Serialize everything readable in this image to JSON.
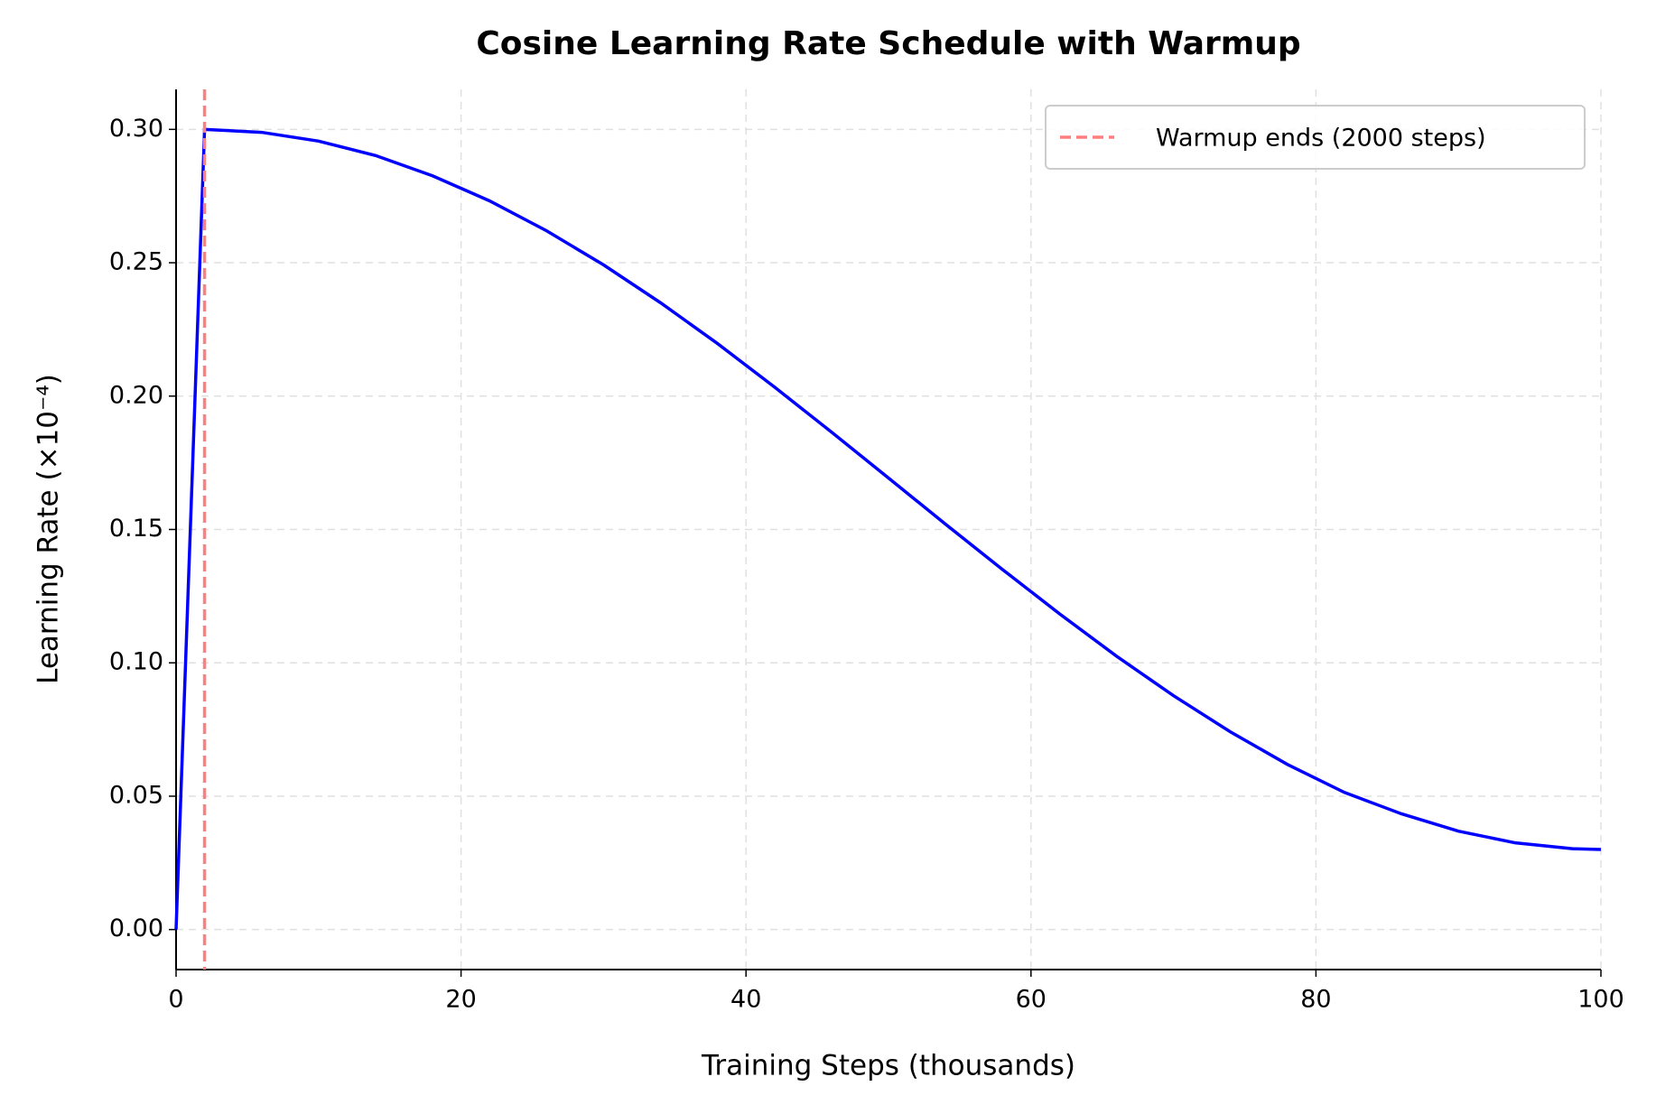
{
  "chart_data": {
    "type": "line",
    "title": "Cosine Learning Rate Schedule with Warmup",
    "x_label": "Training Steps (thousands)",
    "y_label": "Learning Rate (×10⁻⁴)",
    "x": [
      0,
      2,
      6,
      10,
      14,
      18,
      22,
      26,
      30,
      34,
      38,
      42,
      46,
      50,
      54,
      58,
      62,
      66,
      70,
      74,
      78,
      82,
      86,
      90,
      94,
      98,
      100
    ],
    "values": [
      0,
      0.3,
      0.2989,
      0.2956,
      0.2902,
      0.2826,
      0.2732,
      0.262,
      0.2492,
      0.235,
      0.2197,
      0.2034,
      0.1865,
      0.1693,
      0.152,
      0.135,
      0.1184,
      0.1025,
      0.0877,
      0.0741,
      0.0619,
      0.0514,
      0.0434,
      0.0369,
      0.0325,
      0.0303,
      0.03
    ],
    "color": "#0000ff",
    "vline": {
      "x": 2,
      "name": "Warmup ends (2000 steps)",
      "color": "#ff7f7f"
    },
    "xlim": [
      0,
      100
    ],
    "xticks": [
      0,
      20,
      40,
      60,
      80,
      100
    ],
    "ylim": [
      -0.015,
      0.315
    ],
    "yticks": [
      {
        "value": 0,
        "label": "0.00"
      },
      {
        "value": 0.05,
        "label": "0.05"
      },
      {
        "value": 0.1,
        "label": "0.10"
      },
      {
        "value": 0.15,
        "label": "0.15"
      },
      {
        "value": 0.2,
        "label": "0.20"
      },
      {
        "value": 0.25,
        "label": "0.25"
      },
      {
        "value": 0.3,
        "label": "0.30"
      }
    ],
    "grid": true,
    "legend": "upper right"
  }
}
